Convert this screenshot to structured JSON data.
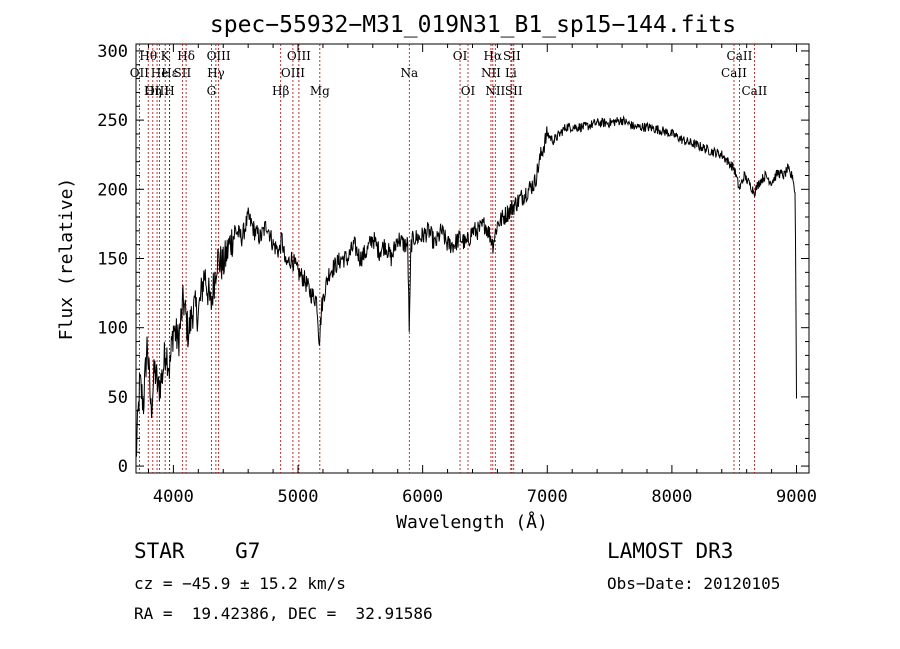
{
  "chart_data": {
    "type": "line",
    "title": "spec−55932−M31_019N31_B1_sp15−144.fits",
    "xlabel": "Wavelength (Å)",
    "ylabel": "Flux (relative)",
    "xlim": [
      3700,
      9100
    ],
    "ylim": [
      -5,
      305
    ],
    "x_ticks": [
      4000,
      5000,
      6000,
      7000,
      8000,
      9000
    ],
    "y_ticks": [
      0,
      50,
      100,
      150,
      200,
      250,
      300
    ],
    "grid": false,
    "line_color": "#000000",
    "marker_color": "#b00000",
    "series": [
      {
        "name": "spectrum",
        "x": [
          3700,
          3730,
          3760,
          3790,
          3820,
          3850,
          3880,
          3910,
          3940,
          3970,
          4000,
          4040,
          4080,
          4120,
          4160,
          4200,
          4250,
          4300,
          4350,
          4400,
          4450,
          4500,
          4550,
          4600,
          4650,
          4700,
          4750,
          4800,
          4850,
          4870,
          4900,
          4950,
          5000,
          5050,
          5100,
          5150,
          5170,
          5190,
          5210,
          5250,
          5300,
          5350,
          5400,
          5450,
          5500,
          5550,
          5600,
          5650,
          5700,
          5750,
          5800,
          5850,
          5880,
          5893,
          5906,
          5930,
          5980,
          6050,
          6100,
          6150,
          6200,
          6250,
          6300,
          6350,
          6400,
          6450,
          6500,
          6550,
          6563,
          6600,
          6650,
          6700,
          6750,
          6800,
          6850,
          6900,
          6950,
          7000,
          7050,
          7100,
          7150,
          7200,
          7300,
          7400,
          7500,
          7600,
          7700,
          7800,
          7900,
          8000,
          8100,
          8200,
          8300,
          8400,
          8500,
          8542,
          8580,
          8662,
          8700,
          8750,
          8800,
          8850,
          8900,
          8930,
          8950,
          8970,
          8990,
          9000
        ],
        "values": [
          5,
          60,
          45,
          90,
          40,
          70,
          55,
          65,
          85,
          70,
          100,
          90,
          120,
          95,
          115,
          110,
          140,
          115,
          150,
          145,
          160,
          170,
          165,
          180,
          170,
          165,
          175,
          160,
          155,
          165,
          145,
          150,
          140,
          135,
          125,
          120,
          90,
          115,
          125,
          140,
          145,
          150,
          150,
          160,
          150,
          155,
          165,
          155,
          160,
          150,
          165,
          160,
          160,
          95,
          160,
          165,
          165,
          170,
          160,
          170,
          160,
          160,
          165,
          160,
          170,
          170,
          175,
          165,
          160,
          175,
          180,
          185,
          190,
          195,
          200,
          205,
          225,
          240,
          235,
          240,
          245,
          245,
          245,
          248,
          248,
          250,
          245,
          245,
          243,
          240,
          235,
          232,
          228,
          225,
          215,
          200,
          210,
          198,
          205,
          210,
          205,
          212,
          210,
          215,
          210,
          210,
          195,
          50
        ]
      }
    ],
    "line_markers": [
      {
        "label": "Hθ",
        "x": 3798,
        "row": 0
      },
      {
        "label": "OII",
        "x": 3727,
        "row": 1
      },
      {
        "label": "OIII",
        "x": 3869,
        "row": 2
      },
      {
        "label": "Hη",
        "x": 3835,
        "row": 2
      },
      {
        "label": "He",
        "x": 3889,
        "row": 1
      },
      {
        "label": "K",
        "x": 3934,
        "row": 0
      },
      {
        "label": "H",
        "x": 3969,
        "row": 2
      },
      {
        "label": "Hε",
        "x": 3970,
        "row": 1
      },
      {
        "label": "SII",
        "x": 4072,
        "row": 1
      },
      {
        "label": "Hδ",
        "x": 4102,
        "row": 0
      },
      {
        "label": "G",
        "x": 4305,
        "row": 2
      },
      {
        "label": "OIII",
        "x": 4363,
        "row": 0
      },
      {
        "label": "Hγ",
        "x": 4341,
        "row": 1
      },
      {
        "label": "Hβ",
        "x": 4861,
        "row": 2
      },
      {
        "label": "OIII",
        "x": 5007,
        "row": 0
      },
      {
        "label": "OIII",
        "x": 4959,
        "row": 1
      },
      {
        "label": "Mg",
        "x": 5175,
        "row": 2
      },
      {
        "label": "Na",
        "x": 5893,
        "row": 1
      },
      {
        "label": "OI",
        "x": 6300,
        "row": 0
      },
      {
        "label": "OI",
        "x": 6364,
        "row": 2
      },
      {
        "label": "Hα",
        "x": 6563,
        "row": 0
      },
      {
        "label": "NII",
        "x": 6548,
        "row": 1
      },
      {
        "label": "NII",
        "x": 6583,
        "row": 2
      },
      {
        "label": "SII",
        "x": 6716,
        "row": 0
      },
      {
        "label": "Li",
        "x": 6708,
        "row": 1
      },
      {
        "label": "SII",
        "x": 6731,
        "row": 2
      },
      {
        "label": "CaII",
        "x": 8542,
        "row": 0
      },
      {
        "label": "CaII",
        "x": 8498,
        "row": 1
      },
      {
        "label": "CaII",
        "x": 8662,
        "row": 2
      }
    ]
  },
  "info": {
    "classification": "STAR    G7",
    "survey": "LAMOST DR3",
    "redshift": "cz = −45.9 ± 15.2 km/s",
    "obs_date": "Obs−Date: 20120105",
    "coords": "RA =  19.42386, DEC =  32.91586"
  }
}
